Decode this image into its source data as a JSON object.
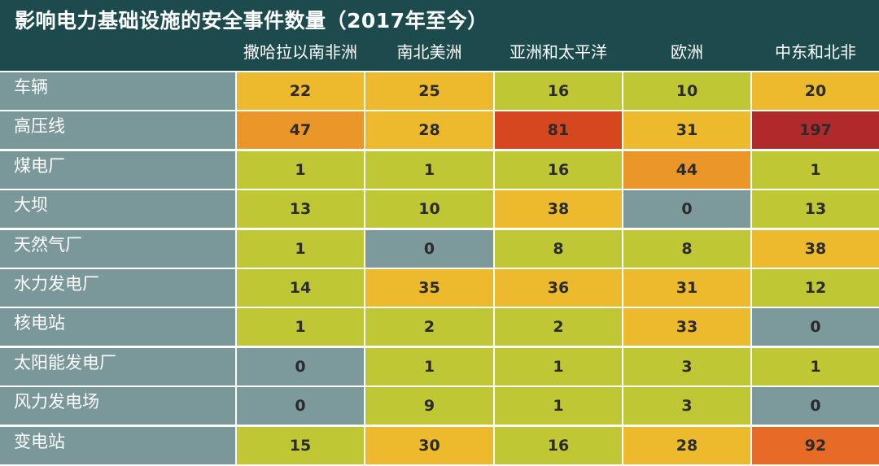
{
  "chart_data": {
    "type": "heatmap",
    "title": "影响电力基础设施的安全事件数量（2017年至今）",
    "columns": [
      "撒哈拉以南非洲",
      "南北美洲",
      "亚洲和太平洋",
      "欧洲",
      "中东和北非"
    ],
    "rows": [
      "车辆",
      "高压线",
      "煤电厂",
      "大坝",
      "天然气厂",
      "水力发电厂",
      "核电站",
      "太阳能发电厂",
      "风力发电场",
      "变电站"
    ],
    "values": [
      [
        22,
        25,
        16,
        10,
        20
      ],
      [
        47,
        28,
        81,
        31,
        197
      ],
      [
        1,
        1,
        16,
        44,
        1
      ],
      [
        13,
        10,
        38,
        0,
        13
      ],
      [
        1,
        0,
        8,
        8,
        38
      ],
      [
        14,
        35,
        36,
        31,
        12
      ],
      [
        1,
        2,
        2,
        33,
        0
      ],
      [
        0,
        1,
        1,
        3,
        1
      ],
      [
        0,
        9,
        1,
        3,
        0
      ],
      [
        15,
        30,
        16,
        28,
        92
      ]
    ],
    "color_scale": [
      {
        "max": 0,
        "color": "#7c999b"
      },
      {
        "max": 19,
        "color": "#bfc834"
      },
      {
        "max": 40,
        "color": "#edb92d"
      },
      {
        "max": 60,
        "color": "#eb9629"
      },
      {
        "max": 85,
        "color": "#d7471f"
      },
      {
        "max": 95,
        "color": "#e56b27"
      },
      {
        "max": 10000,
        "color": "#b02a2c"
      }
    ],
    "colors": {
      "header_bg": "#1d4a4c",
      "row_label_bg": "#7a979a",
      "text_light": "#ffffff",
      "text_dark": "#2b2b2b",
      "separator": "#ffffff"
    }
  }
}
